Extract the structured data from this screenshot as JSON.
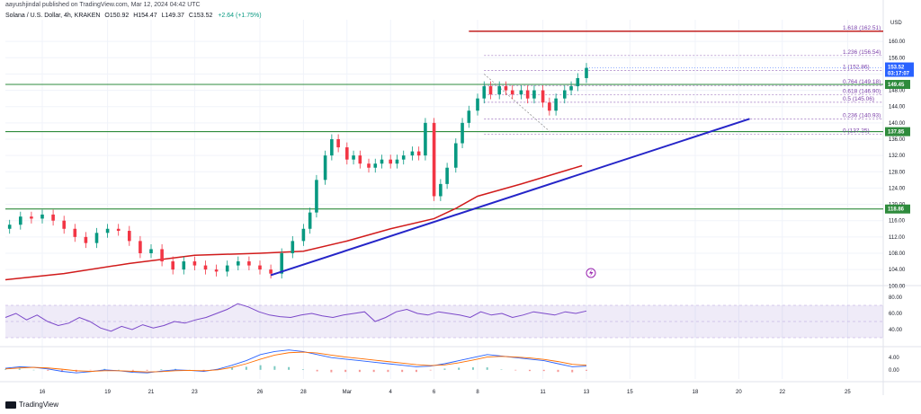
{
  "header": {
    "published": "aayushjindal published on TradingView.com, Mar 12, 2024 04:42 UTC",
    "symbol": "Solana / U.S. Dollar, 4h, KRAKEN",
    "open": "O150.92",
    "high": "H154.47",
    "low": "L149.37",
    "close": "C153.52",
    "change": "+2.64 (+1.75%)"
  },
  "brand": "TradingView",
  "colors": {
    "up": "#089981",
    "down": "#f23645",
    "trendline": "#2525c8",
    "ma": "#d11b1b",
    "support": "#2e8b3c",
    "resistance": "#c22121",
    "fib": "#7a3ea8",
    "rsi": "#7b48c9",
    "macd": "#2962ff",
    "signal": "#ff6d00"
  },
  "chart_data": {
    "type": "candlestick",
    "currency_label": "USD",
    "y_ticks": [
      100.0,
      104.0,
      108.0,
      112.0,
      116.0,
      120.0,
      124.0,
      128.0,
      132.0,
      136.0,
      140.0,
      144.0,
      148.0,
      152.0,
      156.0,
      160.0
    ],
    "ylim": [
      100.5,
      164
    ],
    "x_ticks": [
      "16",
      "19",
      "21",
      "23",
      "26",
      "28",
      "Mar",
      "4",
      "6",
      "8",
      "11",
      "13",
      "15",
      "18",
      "20",
      "22",
      "25"
    ],
    "price_tag": {
      "value": "153.52",
      "countdown": "03:17:07"
    },
    "level_tags": [
      {
        "value": "149.45",
        "color": "#2e8b3c"
      },
      {
        "value": "137.85",
        "color": "#2e8b3c"
      },
      {
        "value": "118.86",
        "color": "#2e8b3c"
      }
    ],
    "support_levels": [
      149.45,
      137.85,
      118.86
    ],
    "resistance_level": 162.51,
    "fibonacci": [
      {
        "ratio": "1.618",
        "price": 162.51,
        "label": "(162.51)"
      },
      {
        "ratio": "1.236",
        "price": 156.54,
        "label": "(156.54)"
      },
      {
        "ratio": "1",
        "price": 152.86,
        "label": "(152.86)"
      },
      {
        "ratio": "0.764",
        "price": 149.18,
        "label": "(149.18)"
      },
      {
        "ratio": "0.618",
        "price": 146.9,
        "label": "(146.90)"
      },
      {
        "ratio": "0.5",
        "price": 145.06,
        "label": "(145.06)"
      },
      {
        "ratio": "0.236",
        "price": 140.93,
        "label": "(140.93)"
      },
      {
        "ratio": "0",
        "price": 137.25,
        "label": "(137.25)"
      }
    ],
    "trendline": {
      "from": {
        "x": 26.5,
        "price": 102.6
      },
      "to": {
        "x": 17.5,
        "price": 141.0
      }
    },
    "close_series": [
      {
        "x": 14.5,
        "c": 115
      },
      {
        "x": 15,
        "c": 117
      },
      {
        "x": 15.5,
        "c": 116.5
      },
      {
        "x": 16,
        "c": 117.5
      },
      {
        "x": 16.5,
        "c": 116
      },
      {
        "x": 17,
        "c": 114
      },
      {
        "x": 17.5,
        "c": 112
      },
      {
        "x": 18,
        "c": 110.5
      },
      {
        "x": 18.5,
        "c": 113
      },
      {
        "x": 19,
        "c": 114
      },
      {
        "x": 19.5,
        "c": 113.5
      },
      {
        "x": 20,
        "c": 111
      },
      {
        "x": 20.5,
        "c": 108
      },
      {
        "x": 21,
        "c": 109
      },
      {
        "x": 21.5,
        "c": 106
      },
      {
        "x": 22,
        "c": 104
      },
      {
        "x": 22.5,
        "c": 106
      },
      {
        "x": 23,
        "c": 105
      },
      {
        "x": 23.5,
        "c": 104
      },
      {
        "x": 24,
        "c": 103.5
      },
      {
        "x": 24.5,
        "c": 105
      },
      {
        "x": 25,
        "c": 106
      },
      {
        "x": 25.5,
        "c": 105
      },
      {
        "x": 26,
        "c": 104
      },
      {
        "x": 26.5,
        "c": 103
      },
      {
        "x": 27,
        "c": 108
      },
      {
        "x": 27.5,
        "c": 111
      },
      {
        "x": 28,
        "c": 114
      },
      {
        "x": 28.3,
        "c": 118
      },
      {
        "x": 28.6,
        "c": 126
      },
      {
        "x": 29,
        "c": 132
      },
      {
        "x": 29.3,
        "c": 136
      },
      {
        "x": 29.6,
        "c": 134
      },
      {
        "x": 30,
        "c": 131
      },
      {
        "x": 30.3,
        "c": 132
      },
      {
        "x": 30.6,
        "c": 130
      },
      {
        "x": 31,
        "c": 129
      },
      {
        "x": 31.3,
        "c": 130
      },
      {
        "x": 31.6,
        "c": 131
      },
      {
        "x": 32,
        "c": 130
      },
      {
        "x": 32.3,
        "c": 131
      },
      {
        "x": 32.6,
        "c": 132
      },
      {
        "x": 33,
        "c": 133
      },
      {
        "x": 33.3,
        "c": 132
      },
      {
        "x": 33.6,
        "c": 140
      },
      {
        "x": 34,
        "c": 122
      },
      {
        "x": 34.3,
        "c": 125
      },
      {
        "x": 34.6,
        "c": 129
      },
      {
        "x": 35,
        "c": 135
      },
      {
        "x": 35.3,
        "c": 140
      },
      {
        "x": 35.6,
        "c": 143
      },
      {
        "x": 36,
        "c": 146
      },
      {
        "x": 36.3,
        "c": 149
      },
      {
        "x": 36.6,
        "c": 147
      },
      {
        "x": 37,
        "c": 149
      },
      {
        "x": 37.3,
        "c": 148
      },
      {
        "x": 37.6,
        "c": 147
      },
      {
        "x": 38,
        "c": 148
      },
      {
        "x": 38.3,
        "c": 146
      },
      {
        "x": 38.6,
        "c": 148
      },
      {
        "x": 39,
        "c": 145
      },
      {
        "x": 39.3,
        "c": 143
      },
      {
        "x": 39.6,
        "c": 146
      },
      {
        "x": 40,
        "c": 148
      },
      {
        "x": 40.3,
        "c": 149
      },
      {
        "x": 40.6,
        "c": 151
      },
      {
        "x": 41,
        "c": 153.5
      }
    ],
    "rsi": {
      "ticks": [
        40.0,
        60.0,
        80.0
      ],
      "band": [
        30,
        70
      ]
    },
    "macd": {
      "ticks": [
        0.0,
        4.0
      ]
    }
  },
  "widget": {
    "lightning_icon": "lightning-icon"
  }
}
